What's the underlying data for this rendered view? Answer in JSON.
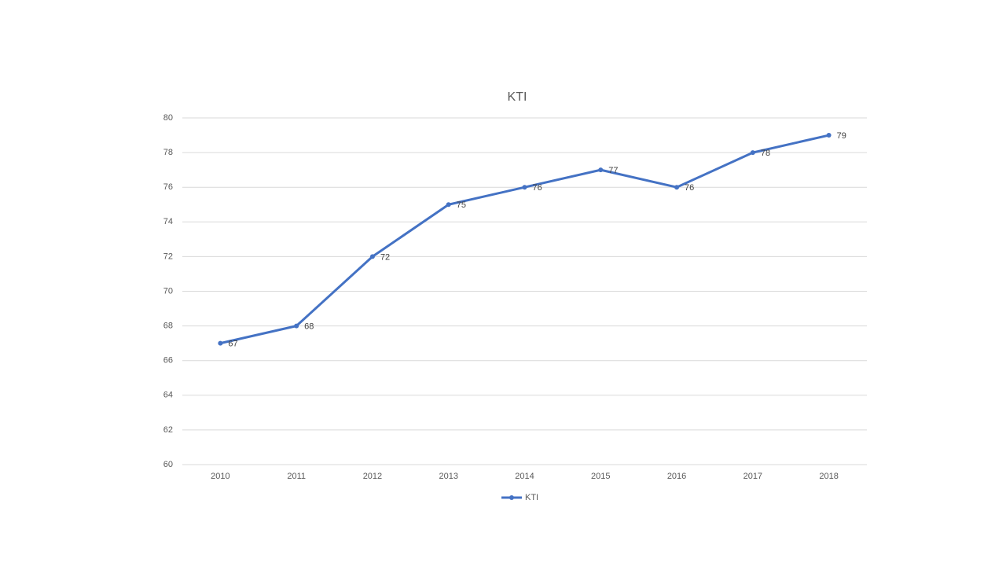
{
  "chart_data": {
    "type": "line",
    "title": "KTI",
    "categories": [
      "2010",
      "2011",
      "2012",
      "2013",
      "2014",
      "2015",
      "2016",
      "2017",
      "2018"
    ],
    "series": [
      {
        "name": "KTI",
        "color": "#4472c4",
        "values": [
          67,
          68,
          72,
          75,
          76,
          77,
          76,
          78,
          79
        ]
      }
    ],
    "ylim": [
      60,
      80
    ],
    "yticks": [
      60,
      62,
      64,
      66,
      68,
      70,
      72,
      74,
      76,
      78,
      80
    ],
    "grid": true,
    "legend": "bottom",
    "data_labels": true
  }
}
